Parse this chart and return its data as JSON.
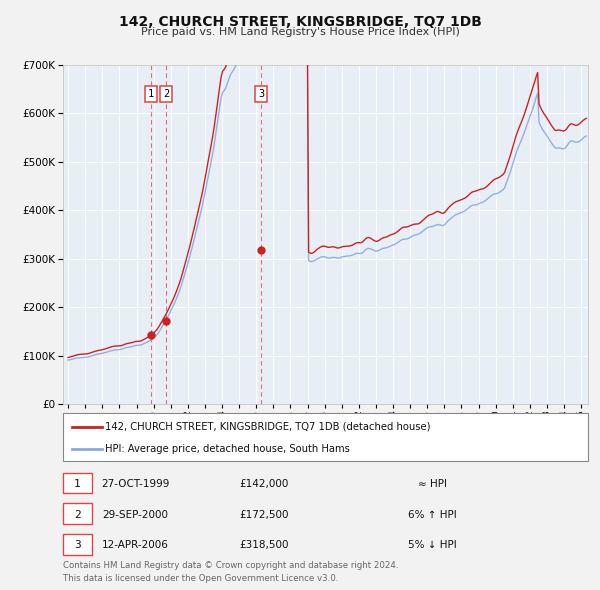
{
  "title": "142, CHURCH STREET, KINGSBRIDGE, TQ7 1DB",
  "subtitle": "Price paid vs. HM Land Registry's House Price Index (HPI)",
  "bg_color": "#f2f2f2",
  "plot_bg_color": "#e8eef5",
  "ylim": [
    0,
    700000
  ],
  "yticks": [
    0,
    100000,
    200000,
    300000,
    400000,
    500000,
    600000,
    700000
  ],
  "sale_dates": [
    1999.82,
    2000.748,
    2006.278
  ],
  "sale_prices": [
    142000,
    172500,
    318500
  ],
  "sale_labels": [
    "1",
    "2",
    "3"
  ],
  "hpi_color": "#88aadd",
  "price_color": "#cc2222",
  "marker_color": "#cc2222",
  "vline_color": "#dd4444",
  "legend_label_price": "142, CHURCH STREET, KINGSBRIDGE, TQ7 1DB (detached house)",
  "legend_label_hpi": "HPI: Average price, detached house, South Hams",
  "table_rows": [
    [
      "1",
      "27-OCT-1999",
      "£142,000",
      "≈ HPI"
    ],
    [
      "2",
      "29-SEP-2000",
      "£172,500",
      "6% ↑ HPI"
    ],
    [
      "3",
      "12-APR-2006",
      "£318,500",
      "5% ↓ HPI"
    ]
  ],
  "footnote": "Contains HM Land Registry data © Crown copyright and database right 2024.\nThis data is licensed under the Open Government Licence v3.0.",
  "xlim_left": 1994.7,
  "xlim_right": 2025.4
}
